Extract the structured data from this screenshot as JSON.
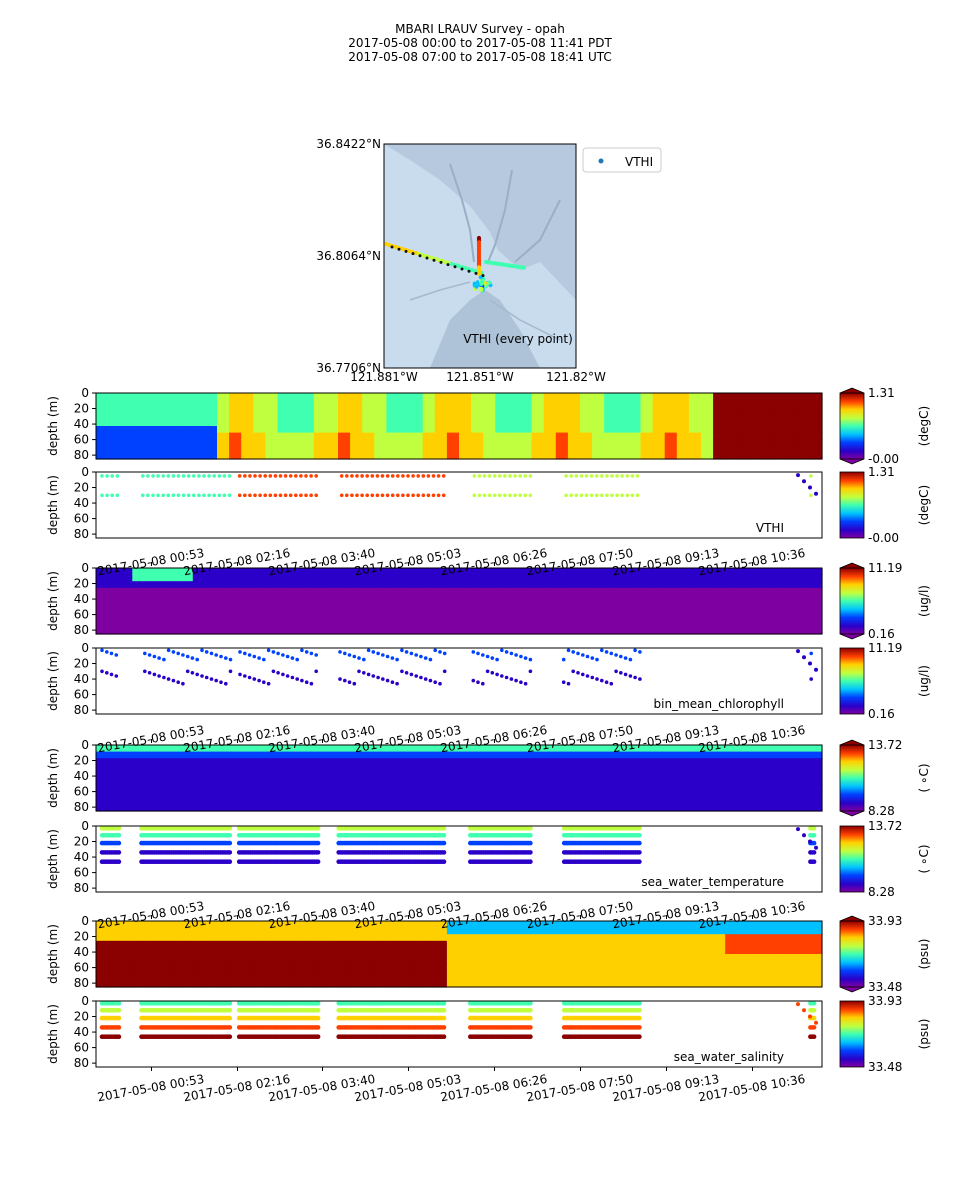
{
  "header": {
    "title": "MBARI LRAUV Survey - opah",
    "pdt_range": "2017-05-08 00:00  to  2017-05-08 11:41 PDT",
    "utc_range": "2017-05-08 07:00  to  2017-05-08 18:41 UTC"
  },
  "map": {
    "lat_ticks": [
      "36.8422°N",
      "36.8064°N",
      "36.7706°N"
    ],
    "lon_ticks": [
      "121.881°W",
      "121.851°W",
      "121.82°W"
    ],
    "legend_label": "VTHI",
    "caption": "VTHI (every point)",
    "colors": {
      "ocean": "#c7dbef",
      "shelf": "#b3c8dc",
      "legend_marker": "#1f77b4"
    }
  },
  "chart_data": {
    "type": "heatmap",
    "x_tick_labels": [
      "2017-05-08 00:53",
      "2017-05-08 02:16",
      "2017-05-08 03:40",
      "2017-05-08 05:03",
      "2017-05-08 06:26",
      "2017-05-08 07:50",
      "2017-05-08 09:13",
      "2017-05-08 10:36"
    ],
    "y_label": "depth (m)",
    "y_ticks": [
      0,
      20,
      40,
      60,
      80
    ],
    "ylim": [
      85,
      0
    ],
    "colormap": "jet",
    "variables": [
      {
        "name": "VTHI",
        "units": "(degC)",
        "min": "-0.00",
        "max": "1.31"
      },
      {
        "name": "bin_mean_chlorophyll",
        "units": "(ug/l)",
        "min": "0.16",
        "max": "11.19"
      },
      {
        "name": "sea_water_temperature",
        "units": "( ∘C)",
        "min": "8.28",
        "max": "13.72"
      },
      {
        "name": "sea_water_salinity",
        "units": "(psu)",
        "min": "33.48",
        "max": "33.93"
      }
    ]
  }
}
